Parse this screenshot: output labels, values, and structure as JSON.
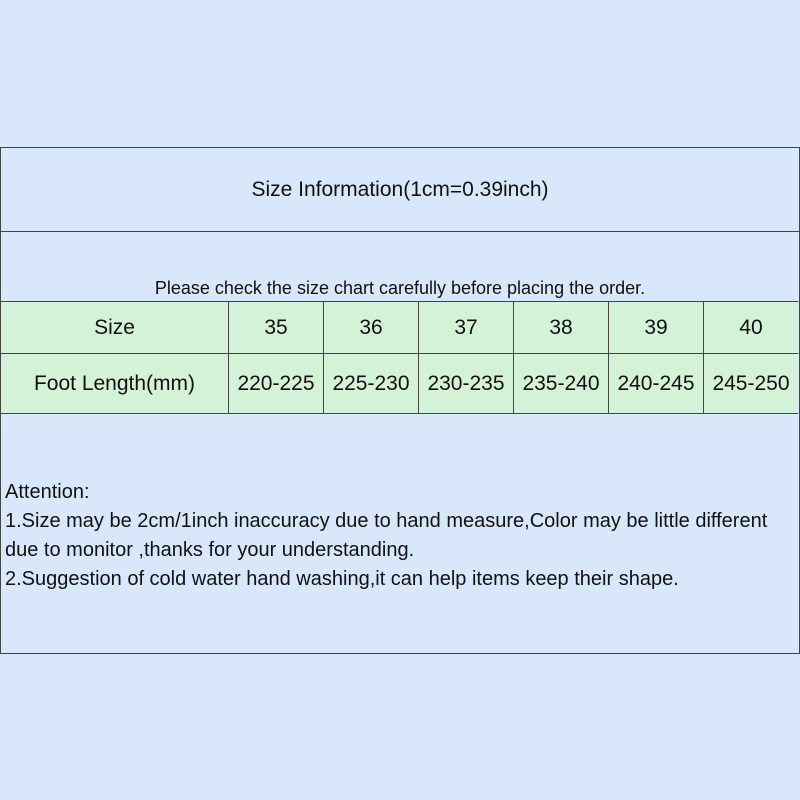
{
  "title": "Size Information(1cm=0.39inch)",
  "note": "Please check the size chart carefully before placing the order.",
  "table": {
    "header": {
      "label": "Size",
      "values": [
        "35",
        "36",
        "37",
        "38",
        "39",
        "40"
      ]
    },
    "row": {
      "label": "Foot Length(mm)",
      "values": [
        "220-225",
        "225-230",
        "230-235",
        "235-240",
        "240-245",
        "245-250"
      ]
    }
  },
  "attention": {
    "heading": "Attention:",
    "lines": [
      "1.Size may be 2cm/1inch inaccuracy due to hand measure,Color may be little different due to monitor ,thanks for your understanding.",
      "2.Suggestion of cold water hand washing,it can help items keep their shape."
    ]
  },
  "colors": {
    "background": "#d9e7fb",
    "table_fill": "#d4f2d8",
    "border": "#444444"
  }
}
